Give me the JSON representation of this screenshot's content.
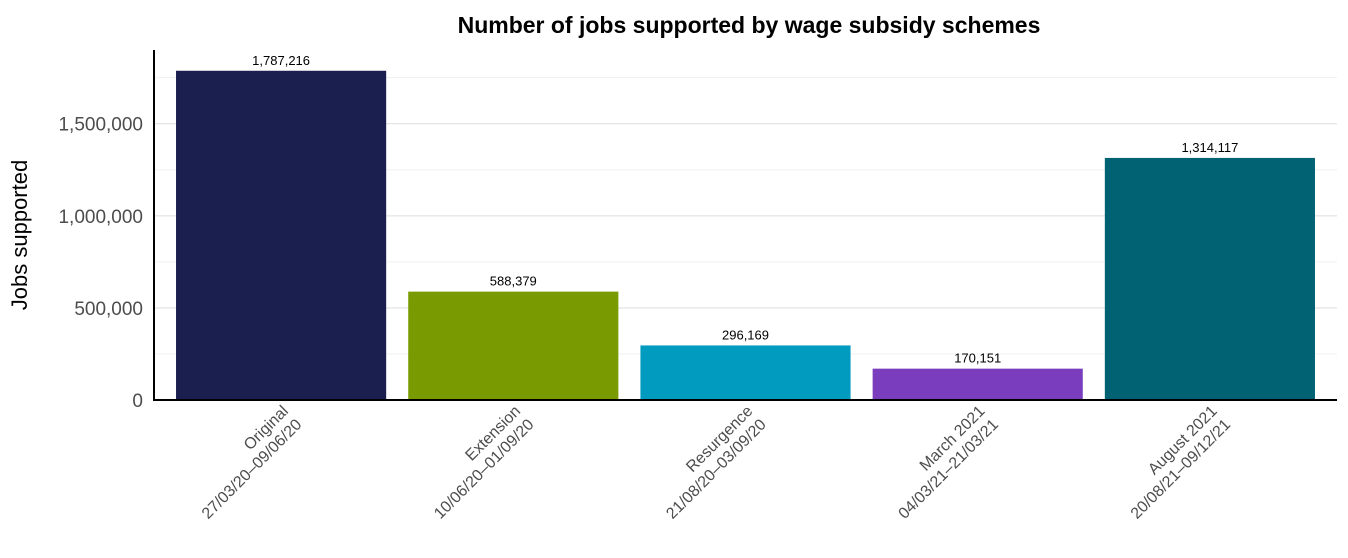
{
  "chart_data": {
    "type": "bar",
    "title": "Number of jobs supported by wage subsidy schemes",
    "xlabel": "",
    "ylabel": "Jobs supported",
    "categories": [
      [
        "Original",
        "27/03/20–09/06/20"
      ],
      [
        "Extension",
        "10/06/20–01/09/20"
      ],
      [
        "Resurgence",
        "21/08/20–03/09/20"
      ],
      [
        "March 2021",
        "04/03/21–21/03/21"
      ],
      [
        "August 2021",
        "20/08/21–09/12/21"
      ]
    ],
    "values": [
      1787216,
      588379,
      296169,
      170151,
      1314117
    ],
    "value_labels": [
      "1,787,216",
      "588,379",
      "296,169",
      "170,151",
      "1,314,117"
    ],
    "colors": [
      "#1b1f4f",
      "#7a9a01",
      "#009bbf",
      "#7a3dbd",
      "#006272"
    ],
    "ylim": [
      0,
      1900000
    ],
    "yticks": [
      0,
      500000,
      1000000,
      1500000
    ],
    "ytick_labels": [
      "0",
      "500,000",
      "1,000,000",
      "1,500,000"
    ],
    "grid": true,
    "legend": "none"
  }
}
